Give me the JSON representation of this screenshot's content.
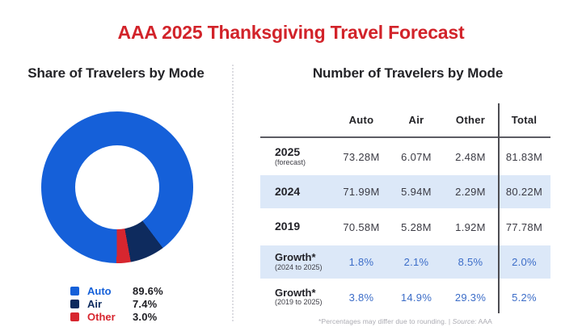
{
  "title": "AAA 2025 Thanksgiving Travel Forecast",
  "colors": {
    "accent_red": "#D2232A",
    "auto_blue": "#1560D9",
    "air_navy": "#0E2B5E",
    "other_red": "#D7262F",
    "growth_blue": "#3C6DC8",
    "row_highlight": "#DCE8F8"
  },
  "donut_section": {
    "heading": "Share of Travelers by Mode"
  },
  "table_section": {
    "heading": "Number of Travelers by Mode",
    "columns": [
      "Auto",
      "Air",
      "Other",
      "Total"
    ],
    "rows": [
      {
        "label": "2025",
        "sublabel": "(forecast)",
        "values": [
          "73.28M",
          "6.07M",
          "2.48M",
          "81.83M"
        ],
        "highlight": false,
        "value_style": "dark"
      },
      {
        "label": "2024",
        "sublabel": "",
        "values": [
          "71.99M",
          "5.94M",
          "2.29M",
          "80.22M"
        ],
        "highlight": true,
        "value_style": "dark"
      },
      {
        "label": "2019",
        "sublabel": "",
        "values": [
          "70.58M",
          "5.28M",
          "1.92M",
          "77.78M"
        ],
        "highlight": false,
        "value_style": "dark"
      },
      {
        "label": "Growth*",
        "sublabel": "(2024 to 2025)",
        "values": [
          "1.8%",
          "2.1%",
          "8.5%",
          "2.0%"
        ],
        "highlight": true,
        "value_style": "blue"
      },
      {
        "label": "Growth*",
        "sublabel": "(2019 to 2025)",
        "values": [
          "3.8%",
          "14.9%",
          "29.3%",
          "5.2%"
        ],
        "highlight": false,
        "value_style": "blue"
      }
    ],
    "footnote": {
      "text": "*Percentages may differ due to rounding. |",
      "source_label": "Source:",
      "source_value": "AAA"
    }
  },
  "legend": [
    {
      "label": "Auto",
      "value": "89.6%",
      "color": "#1560D9"
    },
    {
      "label": "Air",
      "value": "7.4%",
      "color": "#0E2B5E"
    },
    {
      "label": "Other",
      "value": "3.0%",
      "color": "#D7262F"
    }
  ],
  "chart_data": [
    {
      "type": "pie",
      "subtype": "donut",
      "title": "Share of Travelers by Mode",
      "labels": [
        "Auto",
        "Air",
        "Other"
      ],
      "values": [
        89.6,
        7.4,
        3.0
      ],
      "unit": "percent",
      "colors": [
        "#1560D9",
        "#0E2B5E",
        "#D7262F"
      ],
      "legend_position": "bottom-left",
      "layout_note": "Air and Other slices end at bottom (6 o'clock); rest is Auto"
    },
    {
      "type": "table",
      "title": "Number of Travelers by Mode",
      "columns": [
        "",
        "Auto",
        "Air",
        "Other",
        "Total"
      ],
      "rows": [
        [
          "2025 (forecast)",
          "73.28M",
          "6.07M",
          "2.48M",
          "81.83M"
        ],
        [
          "2024",
          "71.99M",
          "5.94M",
          "2.29M",
          "80.22M"
        ],
        [
          "2019",
          "70.58M",
          "5.28M",
          "1.92M",
          "77.78M"
        ],
        [
          "Growth* (2024 to 2025)",
          "1.8%",
          "2.1%",
          "8.5%",
          "2.0%"
        ],
        [
          "Growth* (2019 to 2025)",
          "3.8%",
          "14.9%",
          "29.3%",
          "5.2%"
        ]
      ]
    }
  ]
}
